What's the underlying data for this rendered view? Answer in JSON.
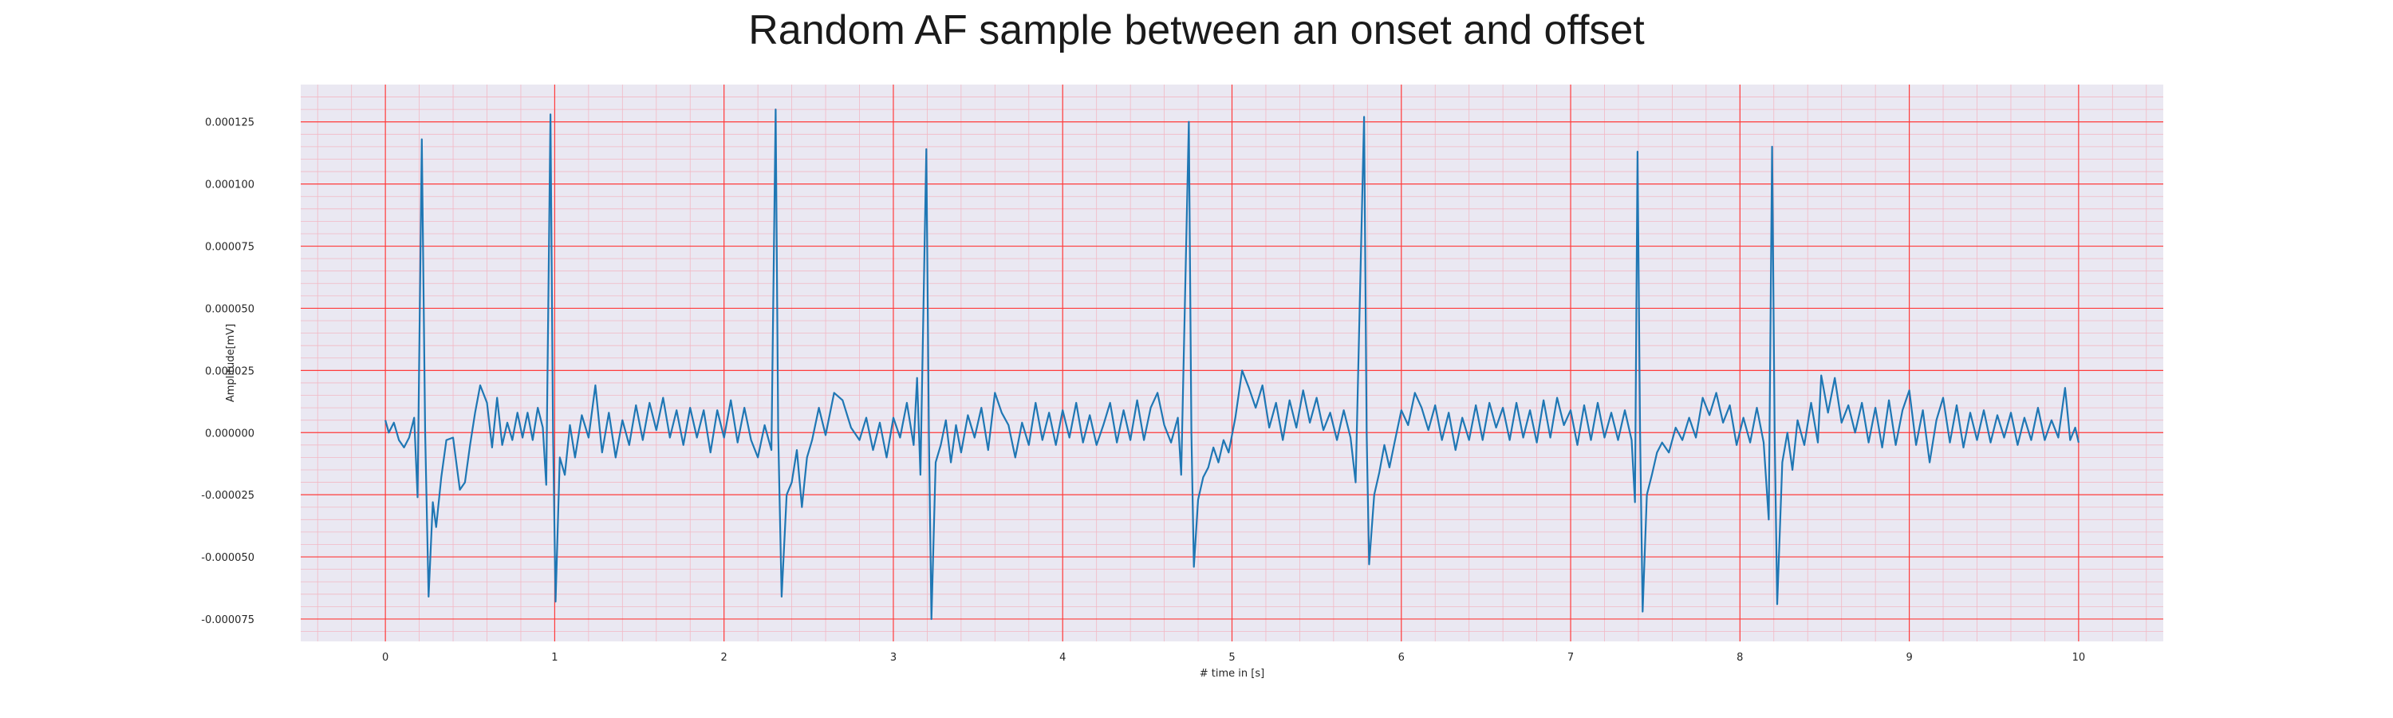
{
  "chart_data": {
    "type": "line",
    "title": "Random AF sample between an onset and offset",
    "xlabel": "# time in [s]",
    "ylabel": "Amplitude[mV]",
    "xlim": [
      -0.5,
      10.5
    ],
    "ylim": [
      -8.4e-05,
      0.00014
    ],
    "x_ticks": [
      "0",
      "1",
      "2",
      "3",
      "4",
      "5",
      "6",
      "7",
      "8",
      "9",
      "10"
    ],
    "y_ticks": [
      "-0.000075",
      "-0.000050",
      "-0.000025",
      "0.000000",
      "0.000025",
      "0.000050",
      "0.000075",
      "0.000100",
      "0.000125"
    ],
    "grid": true,
    "minor_grid": true,
    "colors": {
      "line": "#1f77b4",
      "background": "#eae8f2",
      "major_grid": "#ff3b3b",
      "minor_grid": "#f2b8c4"
    },
    "series": [
      {
        "points": [
          [
            0.0,
            5e-06
          ],
          [
            0.02,
            0.0
          ],
          [
            0.05,
            4e-06
          ],
          [
            0.08,
            -3e-06
          ],
          [
            0.11,
            -6e-06
          ],
          [
            0.14,
            -2e-06
          ],
          [
            0.17,
            6e-06
          ],
          [
            0.19,
            -2.6e-05
          ],
          [
            0.215,
            0.000118
          ],
          [
            0.235,
            0.0
          ],
          [
            0.255,
            -6.6e-05
          ],
          [
            0.28,
            -2.8e-05
          ],
          [
            0.3,
            -3.8e-05
          ],
          [
            0.33,
            -1.8e-05
          ],
          [
            0.36,
            -3e-06
          ],
          [
            0.4,
            -2e-06
          ],
          [
            0.44,
            -2.3e-05
          ],
          [
            0.47,
            -2e-05
          ],
          [
            0.5,
            -5e-06
          ],
          [
            0.53,
            8e-06
          ],
          [
            0.56,
            1.9e-05
          ],
          [
            0.6,
            1.2e-05
          ],
          [
            0.63,
            -6e-06
          ],
          [
            0.66,
            1.4e-05
          ],
          [
            0.69,
            -5e-06
          ],
          [
            0.72,
            4e-06
          ],
          [
            0.75,
            -3e-06
          ],
          [
            0.78,
            8e-06
          ],
          [
            0.81,
            -2e-06
          ],
          [
            0.84,
            8e-06
          ],
          [
            0.87,
            -3e-06
          ],
          [
            0.9,
            1e-05
          ],
          [
            0.93,
            2e-06
          ],
          [
            0.95,
            -2.1e-05
          ],
          [
            0.975,
            0.000128
          ],
          [
            0.99,
            0.0
          ],
          [
            1.005,
            -6.8e-05
          ],
          [
            1.03,
            -1e-05
          ],
          [
            1.06,
            -1.7e-05
          ],
          [
            1.09,
            3e-06
          ],
          [
            1.12,
            -1e-05
          ],
          [
            1.16,
            7e-06
          ],
          [
            1.2,
            -2e-06
          ],
          [
            1.24,
            1.9e-05
          ],
          [
            1.28,
            -8e-06
          ],
          [
            1.32,
            8e-06
          ],
          [
            1.36,
            -1e-05
          ],
          [
            1.4,
            5e-06
          ],
          [
            1.44,
            -5e-06
          ],
          [
            1.48,
            1.1e-05
          ],
          [
            1.52,
            -3e-06
          ],
          [
            1.56,
            1.2e-05
          ],
          [
            1.6,
            1e-06
          ],
          [
            1.64,
            1.4e-05
          ],
          [
            1.68,
            -2e-06
          ],
          [
            1.72,
            9e-06
          ],
          [
            1.76,
            -5e-06
          ],
          [
            1.8,
            1e-05
          ],
          [
            1.84,
            -2e-06
          ],
          [
            1.88,
            9e-06
          ],
          [
            1.92,
            -8e-06
          ],
          [
            1.96,
            9e-06
          ],
          [
            2.0,
            -2e-06
          ],
          [
            2.04,
            1.3e-05
          ],
          [
            2.08,
            -4e-06
          ],
          [
            2.12,
            1e-05
          ],
          [
            2.16,
            -3e-06
          ],
          [
            2.2,
            -1e-05
          ],
          [
            2.24,
            3e-06
          ],
          [
            2.28,
            -7e-06
          ],
          [
            2.305,
            0.00013
          ],
          [
            2.32,
            0.0
          ],
          [
            2.34,
            -6.6e-05
          ],
          [
            2.37,
            -2.5e-05
          ],
          [
            2.4,
            -2e-05
          ],
          [
            2.43,
            -7e-06
          ],
          [
            2.46,
            -3e-05
          ],
          [
            2.49,
            -1e-05
          ],
          [
            2.52,
            -3e-06
          ],
          [
            2.56,
            1e-05
          ],
          [
            2.6,
            -1e-06
          ],
          [
            2.65,
            1.6e-05
          ],
          [
            2.7,
            1.3e-05
          ],
          [
            2.75,
            2e-06
          ],
          [
            2.8,
            -3e-06
          ],
          [
            2.84,
            6e-06
          ],
          [
            2.88,
            -7e-06
          ],
          [
            2.92,
            4e-06
          ],
          [
            2.96,
            -1e-05
          ],
          [
            3.0,
            6e-06
          ],
          [
            3.04,
            -2e-06
          ],
          [
            3.08,
            1.2e-05
          ],
          [
            3.12,
            -5e-06
          ],
          [
            3.14,
            2.2e-05
          ],
          [
            3.16,
            -1.7e-05
          ],
          [
            3.195,
            0.000114
          ],
          [
            3.21,
            0.0
          ],
          [
            3.225,
            -7.5e-05
          ],
          [
            3.25,
            -1.2e-05
          ],
          [
            3.28,
            -5e-06
          ],
          [
            3.31,
            5e-06
          ],
          [
            3.34,
            -1.2e-05
          ],
          [
            3.37,
            3e-06
          ],
          [
            3.4,
            -8e-06
          ],
          [
            3.44,
            7e-06
          ],
          [
            3.48,
            -2e-06
          ],
          [
            3.52,
            1e-05
          ],
          [
            3.56,
            -7e-06
          ],
          [
            3.6,
            1.6e-05
          ],
          [
            3.64,
            8e-06
          ],
          [
            3.68,
            3e-06
          ],
          [
            3.72,
            -1e-05
          ],
          [
            3.76,
            4e-06
          ],
          [
            3.8,
            -5e-06
          ],
          [
            3.84,
            1.2e-05
          ],
          [
            3.88,
            -3e-06
          ],
          [
            3.92,
            8e-06
          ],
          [
            3.96,
            -5e-06
          ],
          [
            4.0,
            9e-06
          ],
          [
            4.04,
            -2e-06
          ],
          [
            4.08,
            1.2e-05
          ],
          [
            4.12,
            -4e-06
          ],
          [
            4.16,
            7e-06
          ],
          [
            4.2,
            -5e-06
          ],
          [
            4.24,
            3e-06
          ],
          [
            4.28,
            1.2e-05
          ],
          [
            4.32,
            -4e-06
          ],
          [
            4.36,
            9e-06
          ],
          [
            4.4,
            -3e-06
          ],
          [
            4.44,
            1.3e-05
          ],
          [
            4.48,
            -3e-06
          ],
          [
            4.52,
            1e-05
          ],
          [
            4.56,
            1.6e-05
          ],
          [
            4.6,
            3e-06
          ],
          [
            4.64,
            -4e-06
          ],
          [
            4.68,
            6e-06
          ],
          [
            4.7,
            -1.7e-05
          ],
          [
            4.745,
            0.000125
          ],
          [
            4.76,
            0.0
          ],
          [
            4.775,
            -5.4e-05
          ],
          [
            4.8,
            -2.7e-05
          ],
          [
            4.83,
            -1.8e-05
          ],
          [
            4.86,
            -1.4e-05
          ],
          [
            4.89,
            -6e-06
          ],
          [
            4.92,
            -1.2e-05
          ],
          [
            4.95,
            -3e-06
          ],
          [
            4.98,
            -8e-06
          ],
          [
            5.02,
            6e-06
          ],
          [
            5.06,
            2.5e-05
          ],
          [
            5.1,
            1.8e-05
          ],
          [
            5.14,
            1e-05
          ],
          [
            5.18,
            1.9e-05
          ],
          [
            5.22,
            2e-06
          ],
          [
            5.26,
            1.2e-05
          ],
          [
            5.3,
            -3e-06
          ],
          [
            5.34,
            1.3e-05
          ],
          [
            5.38,
            2e-06
          ],
          [
            5.42,
            1.7e-05
          ],
          [
            5.46,
            4e-06
          ],
          [
            5.5,
            1.4e-05
          ],
          [
            5.54,
            1e-06
          ],
          [
            5.58,
            8e-06
          ],
          [
            5.62,
            -3e-06
          ],
          [
            5.66,
            9e-06
          ],
          [
            5.7,
            -2e-06
          ],
          [
            5.73,
            -2e-05
          ],
          [
            5.78,
            0.000127
          ],
          [
            5.795,
            0.0
          ],
          [
            5.81,
            -5.3e-05
          ],
          [
            5.84,
            -2.5e-05
          ],
          [
            5.87,
            -1.6e-05
          ],
          [
            5.9,
            -5e-06
          ],
          [
            5.93,
            -1.4e-05
          ],
          [
            5.96,
            -4e-06
          ],
          [
            6.0,
            9e-06
          ],
          [
            6.04,
            3e-06
          ],
          [
            6.08,
            1.6e-05
          ],
          [
            6.12,
            1e-05
          ],
          [
            6.16,
            1e-06
          ],
          [
            6.2,
            1.1e-05
          ],
          [
            6.24,
            -3e-06
          ],
          [
            6.28,
            8e-06
          ],
          [
            6.32,
            -7e-06
          ],
          [
            6.36,
            6e-06
          ],
          [
            6.4,
            -3e-06
          ],
          [
            6.44,
            1.1e-05
          ],
          [
            6.48,
            -3e-06
          ],
          [
            6.52,
            1.2e-05
          ],
          [
            6.56,
            2e-06
          ],
          [
            6.6,
            1e-05
          ],
          [
            6.64,
            -3e-06
          ],
          [
            6.68,
            1.2e-05
          ],
          [
            6.72,
            -2e-06
          ],
          [
            6.76,
            9e-06
          ],
          [
            6.8,
            -4e-06
          ],
          [
            6.84,
            1.3e-05
          ],
          [
            6.88,
            -2e-06
          ],
          [
            6.92,
            1.4e-05
          ],
          [
            6.96,
            3e-06
          ],
          [
            7.0,
            9e-06
          ],
          [
            7.04,
            -5e-06
          ],
          [
            7.08,
            1.1e-05
          ],
          [
            7.12,
            -3e-06
          ],
          [
            7.16,
            1.2e-05
          ],
          [
            7.2,
            -2e-06
          ],
          [
            7.24,
            8e-06
          ],
          [
            7.28,
            -3e-06
          ],
          [
            7.32,
            9e-06
          ],
          [
            7.36,
            -3e-06
          ],
          [
            7.38,
            -2.8e-05
          ],
          [
            7.395,
            0.000113
          ],
          [
            7.41,
            0.0
          ],
          [
            7.425,
            -7.2e-05
          ],
          [
            7.45,
            -2.5e-05
          ],
          [
            7.48,
            -1.7e-05
          ],
          [
            7.51,
            -8e-06
          ],
          [
            7.54,
            -4e-06
          ],
          [
            7.58,
            -8e-06
          ],
          [
            7.62,
            2e-06
          ],
          [
            7.66,
            -3e-06
          ],
          [
            7.7,
            6e-06
          ],
          [
            7.74,
            -2e-06
          ],
          [
            7.78,
            1.4e-05
          ],
          [
            7.82,
            7e-06
          ],
          [
            7.86,
            1.6e-05
          ],
          [
            7.9,
            4e-06
          ],
          [
            7.94,
            1.1e-05
          ],
          [
            7.98,
            -5e-06
          ],
          [
            8.02,
            6e-06
          ],
          [
            8.06,
            -4e-06
          ],
          [
            8.1,
            1e-05
          ],
          [
            8.14,
            -4e-06
          ],
          [
            8.17,
            -3.5e-05
          ],
          [
            8.19,
            0.000115
          ],
          [
            8.205,
            0.0
          ],
          [
            8.22,
            -6.9e-05
          ],
          [
            8.25,
            -1.2e-05
          ],
          [
            8.28,
            0.0
          ],
          [
            8.31,
            -1.5e-05
          ],
          [
            8.34,
            5e-06
          ],
          [
            8.38,
            -5e-06
          ],
          [
            8.42,
            1.2e-05
          ],
          [
            8.46,
            -4e-06
          ],
          [
            8.48,
            2.3e-05
          ],
          [
            8.52,
            8e-06
          ],
          [
            8.56,
            2.2e-05
          ],
          [
            8.6,
            4e-06
          ],
          [
            8.64,
            1.1e-05
          ],
          [
            8.68,
            0.0
          ],
          [
            8.72,
            1.2e-05
          ],
          [
            8.76,
            -4e-06
          ],
          [
            8.8,
            1e-05
          ],
          [
            8.84,
            -6e-06
          ],
          [
            8.88,
            1.3e-05
          ],
          [
            8.92,
            -5e-06
          ],
          [
            8.96,
            9e-06
          ],
          [
            9.0,
            1.7e-05
          ],
          [
            9.04,
            -5e-06
          ],
          [
            9.08,
            9e-06
          ],
          [
            9.12,
            -1.2e-05
          ],
          [
            9.16,
            5e-06
          ],
          [
            9.2,
            1.4e-05
          ],
          [
            9.24,
            -4e-06
          ],
          [
            9.28,
            1.1e-05
          ],
          [
            9.32,
            -6e-06
          ],
          [
            9.36,
            8e-06
          ],
          [
            9.4,
            -3e-06
          ],
          [
            9.44,
            9e-06
          ],
          [
            9.48,
            -4e-06
          ],
          [
            9.52,
            7e-06
          ],
          [
            9.56,
            -2e-06
          ],
          [
            9.6,
            8e-06
          ],
          [
            9.64,
            -5e-06
          ],
          [
            9.68,
            6e-06
          ],
          [
            9.72,
            -3e-06
          ],
          [
            9.76,
            1e-05
          ],
          [
            9.8,
            -3e-06
          ],
          [
            9.84,
            5e-06
          ],
          [
            9.88,
            -2e-06
          ],
          [
            9.92,
            1.8e-05
          ],
          [
            9.95,
            -3e-06
          ],
          [
            9.98,
            2e-06
          ],
          [
            10.0,
            -4e-06
          ]
        ]
      }
    ]
  }
}
